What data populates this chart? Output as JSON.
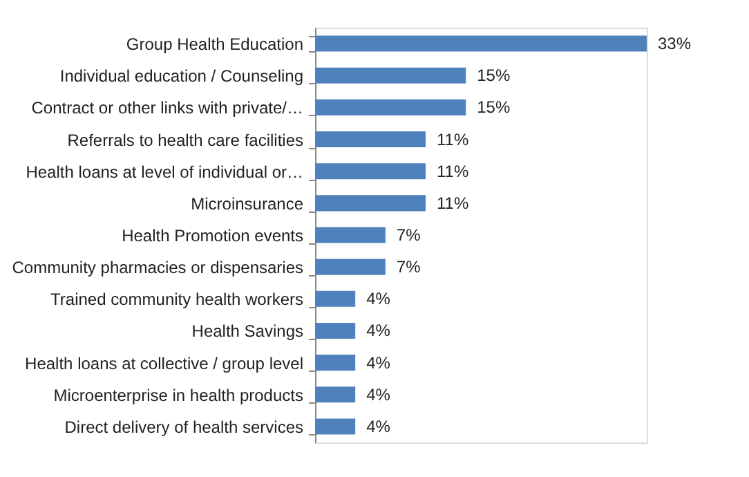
{
  "chart_data": {
    "type": "bar",
    "orientation": "horizontal",
    "categories": [
      "Group Health Education",
      "Individual education / Counseling",
      "Contract or other links with private/…",
      "Referrals to health care facilities",
      "Health loans at level of individual or…",
      "Microinsurance",
      "Health Promotion events",
      "Community pharmacies or dispensaries",
      "Trained community health workers",
      "Health Savings",
      "Health loans at collective / group level",
      "Microenterprise in health products",
      "Direct delivery of health services"
    ],
    "values": [
      33,
      15,
      15,
      11,
      11,
      11,
      7,
      7,
      4,
      4,
      4,
      4,
      4
    ],
    "value_labels": [
      "33%",
      "15%",
      "15%",
      "11%",
      "11%",
      "11%",
      "7%",
      "7%",
      "4%",
      "4%",
      "4%",
      "4%",
      "4%"
    ],
    "color": "#4f81bd",
    "xlim": [
      0,
      33
    ]
  }
}
